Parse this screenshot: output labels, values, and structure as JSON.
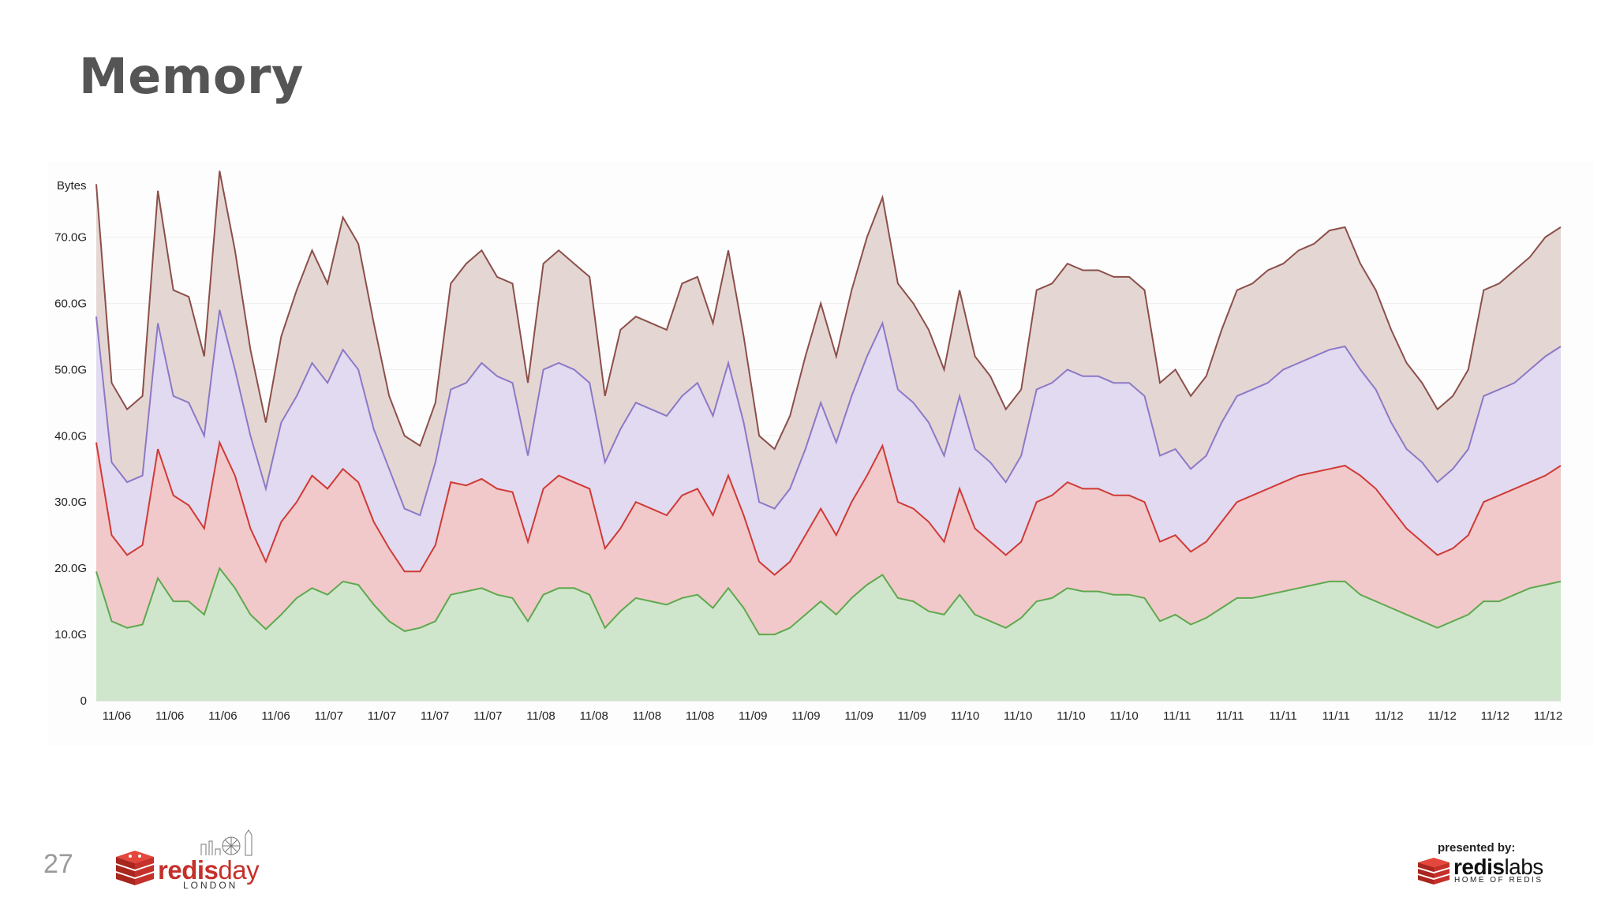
{
  "slide": {
    "title": "Memory",
    "page_number": "27"
  },
  "footer": {
    "event_logo": {
      "word1": "redis",
      "word2": "day",
      "city": "LONDON",
      "icon": "redis-cube-icon"
    },
    "sponsor": {
      "presented_by": "presented by:",
      "word1": "redis",
      "word2": "labs",
      "tagline": "HOME OF REDIS",
      "icon": "redis-cube-icon"
    }
  },
  "colors": {
    "green_fill": "#cfe6cc",
    "green_line": "#5fa84f",
    "red_fill": "#f1c9ca",
    "red_line": "#d03a36",
    "purple_fill": "#e1daf0",
    "purple_line": "#8d78c6",
    "brown_fill": "#e4d7d3",
    "brown_line": "#8c4f4a"
  },
  "chart_data": {
    "type": "area",
    "stacked": true,
    "ylabel": "Bytes",
    "ylim": [
      0,
      79
    ],
    "yticks": [
      0,
      10,
      20,
      30,
      40,
      50,
      60,
      70
    ],
    "ytick_labels": [
      "0",
      "10.0G",
      "20.0G",
      "30.0G",
      "40.0G",
      "50.0G",
      "60.0G",
      "70.0G"
    ],
    "x_tick_labels": [
      "11/06",
      "11/06",
      "11/06",
      "11/06",
      "11/07",
      "11/07",
      "11/07",
      "11/07",
      "11/08",
      "11/08",
      "11/08",
      "11/08",
      "11/09",
      "11/09",
      "11/09",
      "11/09",
      "11/10",
      "11/10",
      "11/10",
      "11/10",
      "11/11",
      "11/11",
      "11/11",
      "11/11",
      "11/12",
      "11/12",
      "11/12",
      "11/12"
    ],
    "grid": true,
    "legend": "none",
    "x": [
      0,
      1,
      2,
      3,
      4,
      5,
      6,
      7,
      8,
      9,
      10,
      11,
      12,
      13,
      14,
      15,
      16,
      17,
      18,
      19,
      20,
      21,
      22,
      23,
      24,
      25,
      26,
      27,
      28
    ],
    "series": [
      {
        "values": [
          19.5,
          12,
          11,
          11.5,
          18.5,
          15,
          15,
          13,
          20,
          17,
          13,
          10.8,
          13,
          15.5,
          17,
          16,
          18,
          17.5,
          14.5,
          12,
          10.5,
          11,
          12,
          16,
          16.5,
          17,
          16,
          15.5,
          12
        ]
      },
      {
        "values": [
          39,
          25,
          22,
          23.5,
          38,
          31,
          29.5,
          26,
          39,
          34,
          26,
          21,
          27,
          30,
          34,
          32,
          35,
          33,
          27,
          23,
          19.5,
          19.5,
          23.5,
          33,
          32.5,
          33.5,
          32,
          31.5,
          24
        ]
      },
      {
        "values": [
          58,
          36,
          33,
          34,
          57,
          46,
          45,
          40,
          59,
          50,
          40,
          32,
          42,
          46,
          51,
          48,
          53,
          50,
          41,
          35,
          29,
          28,
          36,
          47,
          48,
          51,
          49,
          48,
          37
        ]
      },
      {
        "values": [
          78,
          48,
          44,
          46,
          77,
          62,
          61,
          52,
          80,
          68,
          53,
          42,
          55,
          62,
          68,
          63,
          73,
          69,
          57,
          46,
          40,
          38.5,
          45,
          63,
          66,
          68,
          64,
          63,
          48
        ]
      }
    ],
    "series_extended": {
      "x": [
        29,
        30,
        31,
        32,
        33,
        34,
        35,
        36,
        37,
        38,
        39,
        40,
        41,
        42,
        43,
        44,
        45,
        46,
        47,
        48,
        49,
        50,
        51,
        52,
        53,
        54,
        55,
        56
      ],
      "green": [
        16,
        17,
        17,
        16,
        11,
        13.5,
        15.5,
        15,
        14.5,
        15.5,
        16,
        14,
        17,
        14,
        10,
        10,
        11,
        13,
        15,
        13,
        15.5,
        17.5,
        19,
        15.5,
        15,
        13.5,
        13,
        16
      ],
      "red": [
        32,
        34,
        33,
        32,
        23,
        26,
        30,
        29,
        28,
        31,
        32,
        28,
        34,
        28,
        21,
        19,
        21,
        25,
        29,
        25,
        30,
        34,
        38.5,
        30,
        29,
        27,
        24,
        32
      ],
      "purple": [
        50,
        51,
        50,
        48,
        36,
        41,
        45,
        44,
        43,
        46,
        48,
        43,
        51,
        42,
        30,
        29,
        32,
        38,
        45,
        39,
        46,
        52,
        57,
        47,
        45,
        42,
        37,
        46
      ],
      "brown": [
        66,
        68,
        66,
        64,
        46,
        56,
        58,
        57,
        56,
        63,
        64,
        57,
        68,
        55,
        40,
        38,
        43,
        52,
        60,
        52,
        62,
        70,
        76,
        63,
        60,
        56,
        50,
        62
      ]
    },
    "series_tail": {
      "x": [
        57,
        58,
        59,
        60,
        61,
        62,
        63,
        64,
        65,
        66,
        67,
        68,
        69,
        70,
        71,
        72,
        73,
        74,
        75,
        76,
        77,
        78,
        79,
        80,
        81,
        82,
        83,
        84,
        85,
        86,
        87,
        88,
        89,
        90,
        91,
        92,
        93,
        94,
        95
      ],
      "green": [
        13,
        12,
        11,
        12.5,
        15,
        15.5,
        17,
        16.5,
        16.5,
        16,
        16,
        15.5,
        12,
        13,
        11.5,
        12.5,
        14,
        15.5,
        15.5,
        16,
        16.5,
        17,
        17.5,
        18,
        18,
        16,
        15,
        14,
        13,
        12,
        11,
        12,
        13,
        15,
        15,
        16,
        17,
        17.5,
        18
      ],
      "red": [
        26,
        24,
        22,
        24,
        30,
        31,
        33,
        32,
        32,
        31,
        31,
        30,
        24,
        25,
        22.5,
        24,
        27,
        30,
        31,
        32,
        33,
        34,
        34.5,
        35,
        35.5,
        34,
        32,
        29,
        26,
        24,
        22,
        23,
        25,
        30,
        31,
        32,
        33,
        34,
        35.5
      ],
      "purple": [
        38,
        36,
        33,
        37,
        47,
        48,
        50,
        49,
        49,
        48,
        48,
        46,
        37,
        38,
        35,
        37,
        42,
        46,
        47,
        48,
        50,
        51,
        52,
        53,
        53.5,
        50,
        47,
        42,
        38,
        36,
        33,
        35,
        38,
        46,
        47,
        48,
        50,
        52,
        53.5
      ],
      "brown": [
        52,
        49,
        44,
        47,
        62,
        63,
        66,
        65,
        65,
        64,
        64,
        62,
        48,
        50,
        46,
        49,
        56,
        62,
        63,
        65,
        66,
        68,
        69,
        71,
        71.5,
        66,
        62,
        56,
        51,
        48,
        44,
        46,
        50,
        62,
        63,
        65,
        67,
        70,
        71.5
      ]
    }
  }
}
